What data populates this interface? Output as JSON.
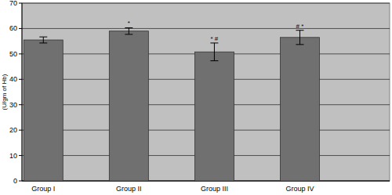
{
  "chart_data": {
    "type": "bar",
    "y_label": "(U/gm of Hb)",
    "categories": [
      "Group I",
      "Group II",
      "Group III",
      "Group IV"
    ],
    "values": [
      55.5,
      59,
      50.8,
      56.5
    ],
    "errors": [
      1.2,
      1.3,
      3.5,
      2.8
    ],
    "annotations": [
      null,
      "*",
      "* #",
      "# *"
    ],
    "color": "#707070",
    "ylim": [
      0,
      70
    ],
    "yticks": [
      0,
      10,
      20,
      30,
      40,
      50,
      60,
      70
    ],
    "grid": true
  }
}
